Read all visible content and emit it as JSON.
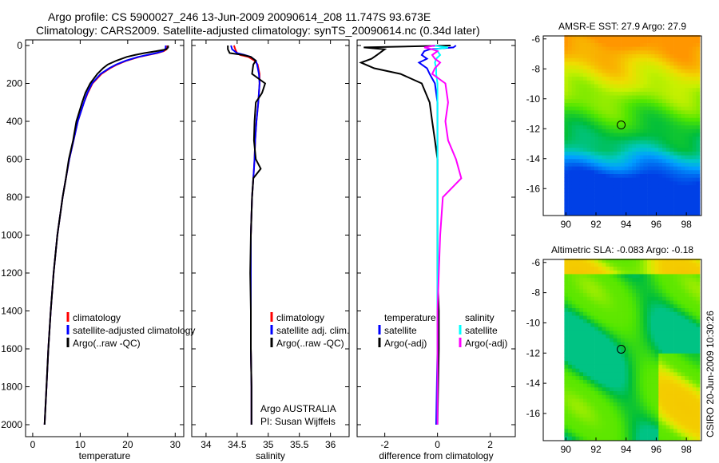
{
  "titles": {
    "line1": "Argo profile: CS 5900027_246 13-Jun-2009 20090614_208 11.747S 93.673E",
    "line2": "Climatology: CARS2009. Satellite-adjusted climatology: synTS_20090614.nc (0.34d later)"
  },
  "side_label": "CSIRO 20-Jun-2009 10:30:26",
  "chart_data": [
    {
      "type": "line",
      "id": "temperature",
      "xlabel": "temperature",
      "ylabel": "",
      "xlim": [
        -1.5,
        31.8
      ],
      "ylim": [
        2070,
        0
      ],
      "xticks": [
        0,
        10,
        20,
        30
      ],
      "yticks": [
        0,
        200,
        400,
        600,
        800,
        1000,
        1200,
        1400,
        1600,
        1800,
        2000
      ],
      "depth": [
        0,
        10,
        20,
        30,
        40,
        50,
        60,
        80,
        100,
        120,
        150,
        200,
        250,
        300,
        400,
        500,
        600,
        700,
        800,
        1000,
        1200,
        1400,
        1600,
        1800,
        2000
      ],
      "series": [
        {
          "name": "climatology",
          "color": "#ff0000",
          "values": [
            28.3,
            28.3,
            28.2,
            27.6,
            26.2,
            24.3,
            22.4,
            19.8,
            17.8,
            16.3,
            14.5,
            12.6,
            11.6,
            10.8,
            9.5,
            8.6,
            7.7,
            7.0,
            6.3,
            5.2,
            4.4,
            3.8,
            3.3,
            2.9,
            2.5
          ]
        },
        {
          "name": "satellite-adjusted climatology",
          "color": "#0000ff",
          "values": [
            28.0,
            28.0,
            27.9,
            27.4,
            26.0,
            24.1,
            22.2,
            19.6,
            17.6,
            16.1,
            14.3,
            12.5,
            11.5,
            10.8,
            9.5,
            8.6,
            7.7,
            7.0,
            6.3,
            5.2,
            4.4,
            3.8,
            3.3,
            2.9,
            2.5
          ]
        },
        {
          "name": "Argo(..raw -QC)",
          "color": "#000000",
          "values": [
            28.5,
            28.5,
            28.1,
            26.0,
            23.5,
            21.5,
            19.8,
            17.6,
            15.8,
            14.8,
            13.6,
            12.1,
            11.1,
            10.4,
            9.2,
            8.5,
            7.6,
            7.0,
            6.3,
            5.2,
            4.4,
            3.8,
            3.3,
            2.9,
            2.5
          ]
        }
      ],
      "legend": [
        "climatology",
        "satellite-adjusted climatology",
        "Argo(..raw -QC)"
      ]
    },
    {
      "type": "line",
      "id": "salinity",
      "xlabel": "salinity",
      "xlim": [
        33.77,
        36.3
      ],
      "ylim": [
        2070,
        0
      ],
      "xticks": [
        34,
        34.5,
        35,
        35.5,
        36
      ],
      "depth": [
        0,
        20,
        40,
        50,
        60,
        80,
        100,
        150,
        200,
        250,
        300,
        400,
        500,
        600,
        650,
        700,
        800,
        1000,
        1200,
        1400,
        1600,
        1800,
        2000
      ],
      "series": [
        {
          "name": "climatology",
          "color": "#ff0000",
          "values": [
            34.45,
            34.47,
            34.5,
            34.55,
            34.68,
            34.78,
            34.83,
            34.86,
            34.86,
            34.85,
            34.84,
            34.81,
            34.79,
            34.78,
            34.77,
            34.76,
            34.74,
            34.72,
            34.72,
            34.72,
            34.72,
            34.73,
            34.73
          ]
        },
        {
          "name": "satellite adj. clim.",
          "color": "#0000ff",
          "values": [
            34.4,
            34.42,
            34.5,
            34.62,
            34.72,
            34.8,
            34.82,
            34.85,
            34.86,
            34.85,
            34.84,
            34.81,
            34.79,
            34.78,
            34.77,
            34.76,
            34.74,
            34.72,
            34.72,
            34.72,
            34.72,
            34.73,
            34.73
          ]
        },
        {
          "name": "Argo(..raw -QC)",
          "color": "#000000",
          "values": [
            34.35,
            34.35,
            34.38,
            34.6,
            34.72,
            34.8,
            34.76,
            34.74,
            34.95,
            34.9,
            34.8,
            34.78,
            34.77,
            34.8,
            34.88,
            34.76,
            34.74,
            34.72,
            34.71,
            34.72,
            34.72,
            34.73,
            34.73
          ]
        }
      ],
      "legend": [
        "climatology",
        "satellite adj. clim.",
        "Argo(..raw -QC)"
      ],
      "annotation": [
        "Argo AUSTRALIA",
        "PI: Susan Wijffels"
      ]
    },
    {
      "type": "line",
      "id": "difference",
      "xlabel": "difference from climatology",
      "xlim": [
        -3.05,
        2.95
      ],
      "ylim": [
        2070,
        0
      ],
      "xticks": [
        -2,
        0,
        2
      ],
      "depth": [
        0,
        10,
        20,
        30,
        50,
        70,
        90,
        120,
        150,
        200,
        300,
        400,
        500,
        600,
        700,
        800,
        1000,
        1200,
        1400,
        1600,
        2000
      ],
      "series": [
        {
          "name": "temperature satellite",
          "color": "#0000ff",
          "values": [
            0.7,
            0.6,
            -0.3,
            -0.5,
            -0.6,
            -0.4,
            -0.7,
            -0.4,
            -0.3,
            -0.1,
            0.0,
            0.0,
            0.0,
            0.0,
            0.0,
            0.0,
            0.0,
            0.0,
            0.0,
            0.0,
            -0.05
          ]
        },
        {
          "name": "temperature Argo(-adj)",
          "color": "#000000",
          "values": [
            0.5,
            -2.8,
            -2.0,
            -2.1,
            -2.3,
            -2.5,
            -2.9,
            -2.4,
            -1.4,
            -0.6,
            -0.3,
            -0.2,
            -0.1,
            0.0,
            0.0,
            0.0,
            0.0,
            0.0,
            0.05,
            0.05,
            0.0
          ]
        },
        {
          "name": "salinity satellite",
          "color": "#00ffff",
          "values": [
            -0.2,
            0.4,
            -0.1,
            0.0,
            0.1,
            -0.05,
            -0.1,
            -0.05,
            -0.05,
            0.0,
            0.0,
            0.0,
            0.0,
            0.0,
            0.0,
            0.0,
            0.0,
            0.0,
            0.0,
            0.0,
            0.0
          ]
        },
        {
          "name": "salinity Argo(-adj)",
          "color": "#ff00ff",
          "values": [
            -0.1,
            -0.5,
            -0.2,
            0.0,
            -0.2,
            -0.1,
            0.1,
            -0.1,
            -0.2,
            0.3,
            0.4,
            0.3,
            0.4,
            0.7,
            0.9,
            0.2,
            0.1,
            0.05,
            0.0,
            0.0,
            0.0
          ]
        }
      ],
      "legend_headers": [
        "temperature",
        "salinity"
      ],
      "legend": [
        "satellite",
        "Argo(-adj)",
        "satellite",
        "Argo(-adj)"
      ]
    },
    {
      "type": "heatmap",
      "id": "sst-map",
      "title": "AMSR-E SST: 27.9 Argo: 27.9",
      "xlim": [
        88.5,
        99
      ],
      "ylim": [
        -17.8,
        -5.8
      ],
      "xticks": [
        90,
        92,
        94,
        96,
        98
      ],
      "yticks": [
        -6,
        -8,
        -10,
        -12,
        -14,
        -16
      ],
      "float_position": [
        93.673,
        -11.747
      ]
    },
    {
      "type": "heatmap",
      "id": "sla-map",
      "title": "Altimetric SLA: -0.083 Argo: -0.18",
      "xlim": [
        88.5,
        99
      ],
      "ylim": [
        -17.8,
        -5.8
      ],
      "xticks": [
        90,
        92,
        94,
        96,
        98
      ],
      "yticks": [
        -6,
        -8,
        -10,
        -12,
        -14,
        -16
      ],
      "float_position": [
        93.673,
        -11.747
      ]
    }
  ]
}
